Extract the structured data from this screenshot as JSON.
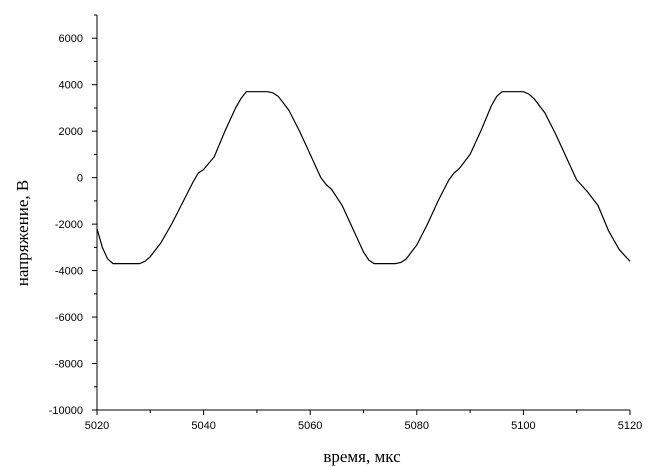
{
  "chart_data": {
    "type": "line",
    "title": "",
    "xlabel": "время, мкс",
    "ylabel": "напряжение, В",
    "xlim": [
      5020,
      5120
    ],
    "ylim": [
      -10000,
      7000
    ],
    "xticks": [
      5020,
      5040,
      5060,
      5080,
      5100,
      5120
    ],
    "yticks": [
      -10000,
      -8000,
      -6000,
      -4000,
      -2000,
      0,
      2000,
      4000,
      6000
    ],
    "grid": false,
    "line_color": "#000000",
    "series": [
      {
        "x": [
          5020,
          5021,
          5022,
          5023,
          5024,
          5026,
          5028,
          5029,
          5030,
          5032,
          5034,
          5036,
          5038,
          5039,
          5040,
          5042,
          5044,
          5046,
          5047,
          5048,
          5050,
          5052,
          5053,
          5054,
          5056,
          5058,
          5060,
          5062,
          5063,
          5064,
          5066,
          5068,
          5070,
          5071,
          5072,
          5074,
          5076,
          5077,
          5078,
          5080,
          5082,
          5084,
          5086,
          5087,
          5088,
          5090,
          5092,
          5094,
          5095,
          5096,
          5098,
          5100,
          5101,
          5102,
          5104,
          5106,
          5108,
          5110,
          5111,
          5112,
          5114,
          5116,
          5118,
          5120
        ],
        "y": [
          -2200,
          -3000,
          -3500,
          -3700,
          -3700,
          -3700,
          -3700,
          -3600,
          -3400,
          -2800,
          -2000,
          -1100,
          -200,
          200,
          350,
          900,
          2000,
          3000,
          3400,
          3700,
          3700,
          3700,
          3650,
          3500,
          2900,
          2000,
          1000,
          0,
          -300,
          -500,
          -1200,
          -2200,
          -3200,
          -3550,
          -3700,
          -3700,
          -3700,
          -3650,
          -3500,
          -2900,
          -2000,
          -1000,
          -100,
          200,
          400,
          1000,
          2000,
          3100,
          3500,
          3700,
          3700,
          3700,
          3600,
          3400,
          2800,
          1900,
          900,
          -100,
          -350,
          -600,
          -1200,
          -2300,
          -3100,
          -3600
        ]
      }
    ]
  }
}
